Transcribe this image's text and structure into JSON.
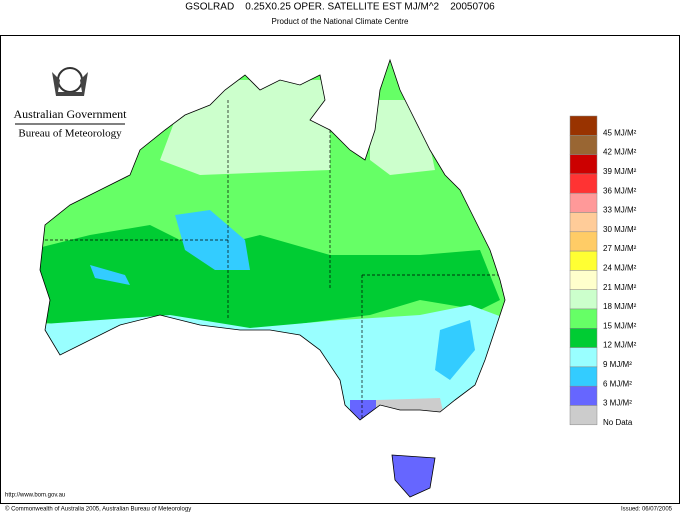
{
  "header": {
    "title": "GSOLRAD    0.25X0.25 OPER. SATELLITE EST MJ/M^2    20050706",
    "subtitle": "Product of the National Climate Centre"
  },
  "logo": {
    "line1": "Australian Government",
    "line2": "Bureau of Meteorology"
  },
  "legend": {
    "items": [
      {
        "label": "45 MJ/M²",
        "color": "#993300"
      },
      {
        "label": "42 MJ/M²",
        "color": "#996633"
      },
      {
        "label": "39 MJ/M²",
        "color": "#cc0000"
      },
      {
        "label": "36 MJ/M²",
        "color": "#ff3333"
      },
      {
        "label": "33 MJ/M²",
        "color": "#ff9999"
      },
      {
        "label": "30 MJ/M²",
        "color": "#ffcc99"
      },
      {
        "label": "27 MJ/M²",
        "color": "#ffcc66"
      },
      {
        "label": "24 MJ/M²",
        "color": "#ffff33"
      },
      {
        "label": "21 MJ/M²",
        "color": "#ffffcc"
      },
      {
        "label": "18 MJ/M²",
        "color": "#ccffcc"
      },
      {
        "label": "15 MJ/M²",
        "color": "#66ff66"
      },
      {
        "label": "12 MJ/M²",
        "color": "#00cc33"
      },
      {
        "label": "9 MJ/M²",
        "color": "#99ffff"
      },
      {
        "label": "6 MJ/M²",
        "color": "#33ccff"
      },
      {
        "label": "3 MJ/M²",
        "color": "#6666ff"
      },
      {
        "label": "No Data",
        "color": "#cccccc"
      }
    ]
  },
  "footer": {
    "url": "http://www.bom.gov.au",
    "copyright": "© Commonwealth of Australia 2005, Australian Bureau of Meteorology",
    "issued": "Issued: 06/07/2005"
  }
}
